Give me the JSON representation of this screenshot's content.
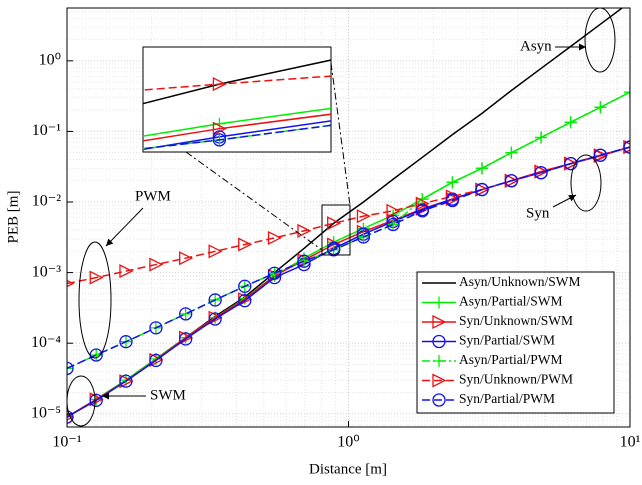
{
  "chart_data": {
    "type": "line",
    "xlabel": "Distance [m]",
    "ylabel": "PEB [m]",
    "log_x": true,
    "log_y": true,
    "grid": true,
    "legend": "lower right",
    "xlim": [
      0.1,
      10
    ],
    "ylim": [
      6.5e-06,
      5.6
    ],
    "xticks": [
      {
        "value": 0.1,
        "label": "10⁻¹"
      },
      {
        "value": 1,
        "label": "10⁰"
      },
      {
        "value": 10,
        "label": "10¹"
      }
    ],
    "yticks": [
      {
        "value": 1e-05,
        "label": "10⁻⁵"
      },
      {
        "value": 0.0001,
        "label": "10⁻⁴"
      },
      {
        "value": 0.001,
        "label": "10⁻³"
      },
      {
        "value": 0.01,
        "label": "10⁻²"
      },
      {
        "value": 0.1,
        "label": "10⁻¹"
      },
      {
        "value": 1,
        "label": "10⁰"
      }
    ],
    "x": [
      0.1,
      0.127,
      0.162,
      0.207,
      0.264,
      0.336,
      0.428,
      0.546,
      0.695,
      0.886,
      1.13,
      1.44,
      1.83,
      2.34,
      2.98,
      3.79,
      4.83,
      6.16,
      7.85,
      10
    ],
    "series": [
      {
        "name": "Asyn/Unknown/SWM",
        "color": "#000000",
        "dash": "solid",
        "marker": "none",
        "values": [
          9e-06,
          1.6e-05,
          3e-05,
          6e-05,
          0.00012,
          0.00024,
          0.00045,
          0.001,
          0.0022,
          0.005,
          0.01,
          0.021,
          0.043,
          0.09,
          0.18,
          0.38,
          0.78,
          1.6,
          3.3,
          6.8
        ]
      },
      {
        "name": "Asyn/Partial/SWM",
        "color": "#00ee00",
        "dash": "solid",
        "marker": "plus",
        "values": [
          9e-06,
          1.6e-05,
          3e-05,
          6e-05,
          0.00012,
          0.00023,
          0.00043,
          0.0009,
          0.0016,
          0.0027,
          0.0042,
          0.0065,
          0.011,
          0.019,
          0.03,
          0.05,
          0.082,
          0.135,
          0.22,
          0.36
        ]
      },
      {
        "name": "Syn/Unknown/SWM",
        "color": "#ee1111",
        "dash": "solid",
        "marker": "triangle",
        "values": [
          9e-06,
          1.6e-05,
          2.9e-05,
          5.8e-05,
          0.00012,
          0.00023,
          0.00042,
          0.0009,
          0.0015,
          0.0025,
          0.0038,
          0.0055,
          0.008,
          0.011,
          0.015,
          0.02,
          0.027,
          0.035,
          0.045,
          0.06
        ]
      },
      {
        "name": "Syn/Partial/SWM",
        "color": "#1111ee",
        "dash": "solid",
        "marker": "circle",
        "values": [
          9e-06,
          1.55e-05,
          2.9e-05,
          5.7e-05,
          0.000115,
          0.00022,
          0.0004,
          0.00085,
          0.0013,
          0.0022,
          0.0035,
          0.0053,
          0.0078,
          0.011,
          0.015,
          0.02,
          0.026,
          0.035,
          0.046,
          0.06
        ]
      },
      {
        "name": "Asyn/Partial/PWM",
        "color": "#00ee00",
        "dash": "dashdot",
        "marker": "plus",
        "values": [
          4.4e-05,
          6.8e-05,
          0.000105,
          0.000165,
          0.00026,
          0.00041,
          0.00064,
          0.00098,
          0.00145,
          0.0021,
          0.0032,
          0.0048,
          0.011,
          0.019,
          0.03,
          0.05,
          0.082,
          0.135,
          0.22,
          0.36
        ]
      },
      {
        "name": "Syn/Unknown/PWM",
        "color": "#ee1111",
        "dash": "dashed",
        "marker": "triangle",
        "values": [
          0.0007,
          0.00085,
          0.00105,
          0.0013,
          0.0016,
          0.002,
          0.0025,
          0.0031,
          0.0039,
          0.005,
          0.0063,
          0.0075,
          0.0095,
          0.012,
          0.015,
          0.02,
          0.027,
          0.035,
          0.046,
          0.06
        ]
      },
      {
        "name": "Syn/Partial/PWM",
        "color": "#1111ee",
        "dash": "dashed",
        "marker": "circle",
        "values": [
          4.4e-05,
          6.8e-05,
          0.000105,
          0.000165,
          0.00026,
          0.00041,
          0.00064,
          0.00098,
          0.00145,
          0.0021,
          0.0032,
          0.0048,
          0.0075,
          0.0105,
          0.015,
          0.02,
          0.026,
          0.035,
          0.046,
          0.06
        ]
      }
    ],
    "inset": {
      "xlim": [
        0.81,
        1.01
      ],
      "ylim": [
        0.00174,
        0.0089
      ]
    },
    "annotations": [
      "Asyn",
      "Syn",
      "PWM",
      "SWM"
    ]
  }
}
